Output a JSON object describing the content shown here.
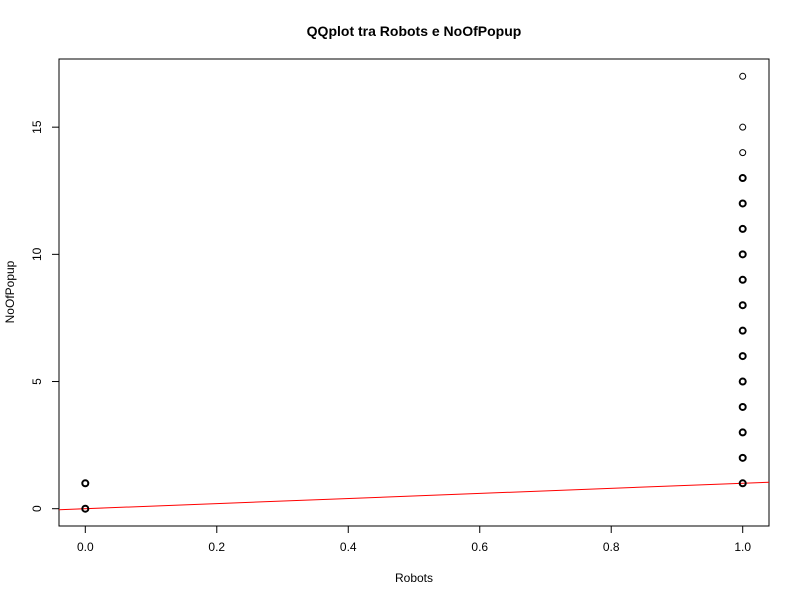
{
  "chart_data": {
    "type": "scatter",
    "title": "QQplot tra Robots e NoOfPopup",
    "xlabel": "Robots",
    "ylabel": "NoOfPopup",
    "xlim": [
      -0.04,
      1.04
    ],
    "ylim": [
      -0.68,
      17.68
    ],
    "x_ticks": [
      0,
      0.2,
      0.4,
      0.6,
      0.8,
      1
    ],
    "x_tick_labels": [
      "0.0",
      "0.2",
      "0.4",
      "0.6",
      "0.8",
      "1.0"
    ],
    "y_ticks": [
      0,
      5,
      10,
      15
    ],
    "y_tick_labels": [
      "0",
      "5",
      "10",
      "15"
    ],
    "grid": false,
    "points": [
      {
        "x": 0,
        "y": 0
      },
      {
        "x": 0,
        "y": 1
      },
      {
        "x": 1,
        "y": 1
      },
      {
        "x": 1,
        "y": 2
      },
      {
        "x": 1,
        "y": 3
      },
      {
        "x": 1,
        "y": 4
      },
      {
        "x": 1,
        "y": 5
      },
      {
        "x": 1,
        "y": 6
      },
      {
        "x": 1,
        "y": 7
      },
      {
        "x": 1,
        "y": 8
      },
      {
        "x": 1,
        "y": 9
      },
      {
        "x": 1,
        "y": 10
      },
      {
        "x": 1,
        "y": 11
      },
      {
        "x": 1,
        "y": 12
      },
      {
        "x": 1,
        "y": 13
      },
      {
        "x": 1,
        "y": 14
      },
      {
        "x": 1,
        "y": 15
      },
      {
        "x": 1,
        "y": 17
      }
    ],
    "reference_line": {
      "intercept": 0,
      "slope": 1,
      "color": "#ff0000"
    },
    "point_color": "#000000"
  }
}
